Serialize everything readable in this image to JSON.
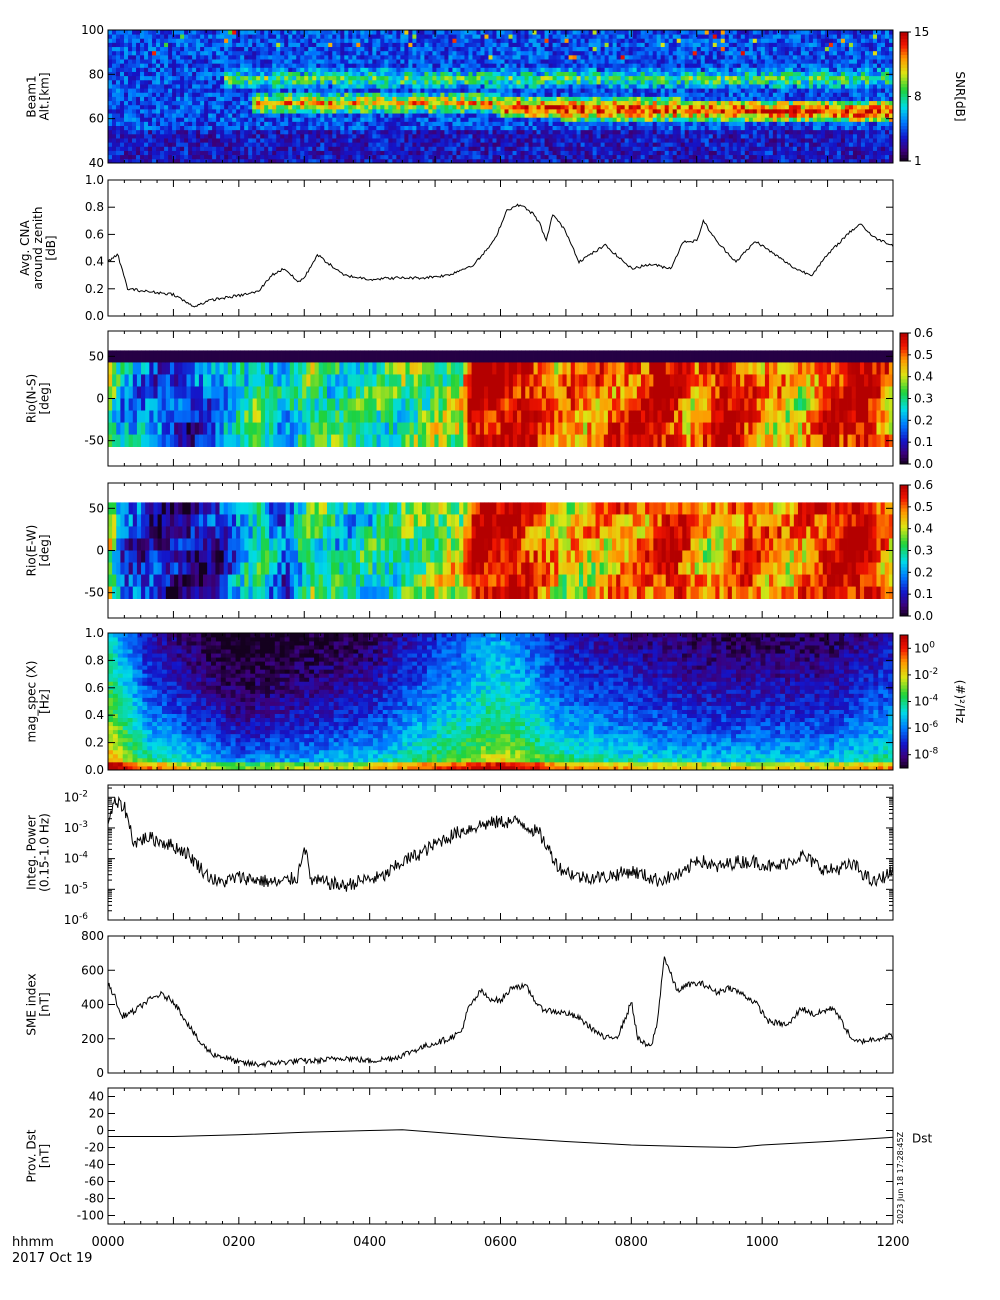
{
  "figure": {
    "time_unit_label": "hhmm",
    "date_label": "2017 Oct 19",
    "stamp_text": "2023 Jun 18 17:28:45Z",
    "x_ticks": [
      "0000",
      "0200",
      "0400",
      "0600",
      "0800",
      "1000",
      "1200"
    ],
    "x_range": [
      0,
      1200
    ]
  },
  "chart_data": [
    {
      "type": "heatmap",
      "panel": "riometer-beam-snr",
      "ylabel_lines": [
        "Beam1",
        "Alt.[km]"
      ],
      "ylim": [
        40,
        100
      ],
      "yticks": [
        40,
        60,
        80,
        100
      ],
      "colorbar": {
        "label": "SNR[dB]",
        "range": [
          1,
          15
        ],
        "ticks": [
          "1",
          "8",
          "15"
        ],
        "colormap": "rainbow"
      },
      "description_of_values": [
        {
          "time": "0000-0600",
          "altitude_km": 67,
          "snr_db": 12
        },
        {
          "time": "0600-1200",
          "altitude_km": 65,
          "snr_db": 14
        },
        {
          "time": "0000-1200",
          "altitude_km": 78,
          "snr_db": 9
        },
        {
          "time": "0000-1200",
          "altitude_km": 50,
          "snr_db": 2
        }
      ]
    },
    {
      "type": "line",
      "panel": "avg-cna",
      "ylabel_lines": [
        "Avg. CNA",
        "around zenith",
        "[dB]"
      ],
      "ylim": [
        0,
        1.0
      ],
      "yticks": [
        "0.0",
        "0.2",
        "0.4",
        "0.6",
        "0.8",
        "1.0"
      ],
      "x": [
        0,
        15,
        30,
        60,
        100,
        130,
        160,
        200,
        230,
        250,
        270,
        290,
        300,
        320,
        360,
        400,
        440,
        480,
        520,
        560,
        590,
        610,
        630,
        650,
        660,
        670,
        680,
        700,
        720,
        760,
        800,
        830,
        860,
        880,
        900,
        910,
        930,
        960,
        990,
        1020,
        1050,
        1075,
        1100,
        1130,
        1150,
        1170,
        1200
      ],
      "y": [
        0.4,
        0.45,
        0.2,
        0.18,
        0.16,
        0.07,
        0.12,
        0.15,
        0.18,
        0.3,
        0.35,
        0.25,
        0.28,
        0.45,
        0.3,
        0.27,
        0.28,
        0.28,
        0.3,
        0.38,
        0.55,
        0.78,
        0.82,
        0.75,
        0.68,
        0.55,
        0.75,
        0.62,
        0.4,
        0.52,
        0.35,
        0.38,
        0.35,
        0.55,
        0.55,
        0.7,
        0.55,
        0.4,
        0.55,
        0.45,
        0.35,
        0.3,
        0.45,
        0.6,
        0.68,
        0.58,
        0.52
      ]
    },
    {
      "type": "heatmap",
      "panel": "rio-ns",
      "ylabel_lines": [
        "Rio(N-S)",
        "[deg]"
      ],
      "ylim": [
        -80,
        80
      ],
      "yticks": [
        -50,
        0,
        50
      ],
      "colorbar": {
        "range": [
          0.0,
          0.6
        ],
        "ticks": [
          "0.0",
          "0.1",
          "0.2",
          "0.3",
          "0.4",
          "0.5",
          "0.6"
        ],
        "colormap": "rainbow"
      },
      "row_extent_deg": [
        -57,
        57
      ],
      "column_levels": [
        {
          "t": 0,
          "v": 0.4
        },
        {
          "t": 20,
          "v": 0.22
        },
        {
          "t": 60,
          "v": 0.18
        },
        {
          "t": 120,
          "v": 0.12
        },
        {
          "t": 180,
          "v": 0.2
        },
        {
          "t": 230,
          "v": 0.32
        },
        {
          "t": 270,
          "v": 0.22
        },
        {
          "t": 310,
          "v": 0.33
        },
        {
          "t": 360,
          "v": 0.28
        },
        {
          "t": 420,
          "v": 0.3
        },
        {
          "t": 540,
          "v": 0.38
        },
        {
          "t": 560,
          "v": 0.62
        },
        {
          "t": 640,
          "v": 0.58
        },
        {
          "t": 680,
          "v": 0.48
        },
        {
          "t": 760,
          "v": 0.5
        },
        {
          "t": 820,
          "v": 0.55
        },
        {
          "t": 850,
          "v": 0.62
        },
        {
          "t": 900,
          "v": 0.45
        },
        {
          "t": 940,
          "v": 0.6
        },
        {
          "t": 1000,
          "v": 0.48
        },
        {
          "t": 1060,
          "v": 0.42
        },
        {
          "t": 1100,
          "v": 0.55
        },
        {
          "t": 1150,
          "v": 0.62
        },
        {
          "t": 1200,
          "v": 0.45
        }
      ]
    },
    {
      "type": "heatmap",
      "panel": "rio-ew",
      "ylabel_lines": [
        "Rio(E-W)",
        "[deg]"
      ],
      "ylim": [
        -80,
        80
      ],
      "yticks": [
        -50,
        0,
        50
      ],
      "colorbar": {
        "range": [
          0.0,
          0.6
        ],
        "ticks": [
          "0.0",
          "0.1",
          "0.2",
          "0.3",
          "0.4",
          "0.5",
          "0.6"
        ],
        "colormap": "rainbow"
      },
      "row_extent_deg": [
        -57,
        57
      ],
      "column_levels": [
        {
          "t": 0,
          "v": 0.45
        },
        {
          "t": 20,
          "v": 0.15
        },
        {
          "t": 60,
          "v": 0.1
        },
        {
          "t": 120,
          "v": 0.06
        },
        {
          "t": 180,
          "v": 0.12
        },
        {
          "t": 230,
          "v": 0.3
        },
        {
          "t": 270,
          "v": 0.15
        },
        {
          "t": 310,
          "v": 0.33
        },
        {
          "t": 360,
          "v": 0.25
        },
        {
          "t": 420,
          "v": 0.28
        },
        {
          "t": 540,
          "v": 0.4
        },
        {
          "t": 560,
          "v": 0.62
        },
        {
          "t": 640,
          "v": 0.55
        },
        {
          "t": 700,
          "v": 0.4
        },
        {
          "t": 760,
          "v": 0.45
        },
        {
          "t": 820,
          "v": 0.5
        },
        {
          "t": 860,
          "v": 0.6
        },
        {
          "t": 920,
          "v": 0.42
        },
        {
          "t": 980,
          "v": 0.55
        },
        {
          "t": 1040,
          "v": 0.45
        },
        {
          "t": 1100,
          "v": 0.55
        },
        {
          "t": 1150,
          "v": 0.62
        },
        {
          "t": 1200,
          "v": 0.45
        }
      ]
    },
    {
      "type": "heatmap",
      "panel": "mag-spec-x",
      "ylabel_lines": [
        "mag_spec (X)",
        "[Hz]"
      ],
      "ylim": [
        0,
        1.0
      ],
      "yticks": [
        "0.0",
        "0.2",
        "0.4",
        "0.6",
        "0.8",
        "1.0"
      ],
      "colorbar": {
        "label": "(#)²/Hz",
        "log_range": [
          -9,
          1
        ],
        "tick_exponents": [
          "0",
          "-2",
          "-4",
          "-6",
          "-8"
        ],
        "colormap": "rainbow"
      },
      "background_log_power": [
        {
          "t": 0,
          "v": -1
        },
        {
          "t": 60,
          "v": -4
        },
        {
          "t": 200,
          "v": -6
        },
        {
          "t": 400,
          "v": -5
        },
        {
          "t": 600,
          "v": -2
        },
        {
          "t": 700,
          "v": -4
        },
        {
          "t": 900,
          "v": -5
        },
        {
          "t": 1100,
          "v": -5
        },
        {
          "t": 1200,
          "v": -4
        }
      ]
    },
    {
      "type": "line",
      "panel": "integ-power",
      "ylabel_lines": [
        "Integ. Power",
        "(0.15-1.0 Hz)"
      ],
      "yscale": "log",
      "ylim_exp": [
        -6,
        -1.6
      ],
      "ytick_exponents": [
        "-6",
        "-5",
        "-4",
        "-3",
        "-2"
      ],
      "x": [
        0,
        10,
        25,
        40,
        60,
        90,
        120,
        150,
        170,
        200,
        230,
        260,
        290,
        300,
        310,
        340,
        360,
        390,
        420,
        450,
        480,
        510,
        540,
        570,
        600,
        630,
        660,
        690,
        720,
        760,
        800,
        840,
        880,
        900,
        930,
        960,
        990,
        1020,
        1060,
        1100,
        1140,
        1170,
        1200
      ],
      "y_exp": [
        -2.8,
        -2.2,
        -2.3,
        -3.5,
        -3.3,
        -3.5,
        -3.8,
        -4.5,
        -4.8,
        -4.6,
        -4.7,
        -4.8,
        -4.6,
        -3.5,
        -4.7,
        -4.8,
        -4.9,
        -4.7,
        -4.6,
        -4.1,
        -3.8,
        -3.4,
        -3.1,
        -2.9,
        -2.8,
        -2.8,
        -3.2,
        -4.3,
        -4.6,
        -4.6,
        -4.4,
        -4.7,
        -4.5,
        -4.0,
        -4.3,
        -4.1,
        -4.1,
        -4.3,
        -3.9,
        -4.4,
        -4.2,
        -4.8,
        -4.4
      ]
    },
    {
      "type": "line",
      "panel": "sme-index",
      "ylabel_lines": [
        "SME index",
        "[nT]"
      ],
      "ylim": [
        0,
        800
      ],
      "yticks": [
        0,
        200,
        400,
        600,
        800
      ],
      "x": [
        0,
        10,
        20,
        40,
        60,
        80,
        100,
        120,
        140,
        160,
        180,
        200,
        230,
        260,
        290,
        320,
        360,
        400,
        440,
        480,
        520,
        540,
        550,
        570,
        580,
        600,
        620,
        640,
        660,
        680,
        700,
        720,
        740,
        760,
        780,
        795,
        800,
        810,
        820,
        830,
        840,
        850,
        870,
        890,
        910,
        930,
        950,
        970,
        990,
        1010,
        1040,
        1060,
        1080,
        1100,
        1110,
        1120,
        1140,
        1160,
        1200
      ],
      "y": [
        520,
        450,
        330,
        360,
        420,
        460,
        420,
        300,
        180,
        110,
        90,
        60,
        50,
        60,
        70,
        70,
        90,
        70,
        90,
        150,
        200,
        240,
        370,
        480,
        440,
        420,
        510,
        500,
        380,
        360,
        350,
        320,
        260,
        200,
        220,
        360,
        420,
        200,
        170,
        150,
        300,
        680,
        480,
        520,
        520,
        470,
        500,
        460,
        410,
        300,
        280,
        380,
        340,
        370,
        380,
        310,
        180,
        190,
        220
      ]
    },
    {
      "type": "line",
      "panel": "prov-dst",
      "ylabel_lines": [
        "Prov. Dst",
        "[nT]"
      ],
      "ylim": [
        -110,
        50
      ],
      "yticks": [
        -100,
        -80,
        -60,
        -40,
        -20,
        0,
        20,
        40
      ],
      "series_label": "Dst",
      "x": [
        0,
        100,
        200,
        300,
        400,
        450,
        500,
        600,
        700,
        800,
        900,
        960,
        1000,
        1100,
        1200
      ],
      "y": [
        -7,
        -7,
        -5,
        -2,
        0,
        1,
        -2,
        -8,
        -13,
        -17,
        -19,
        -20,
        -17,
        -13,
        -8
      ]
    }
  ]
}
